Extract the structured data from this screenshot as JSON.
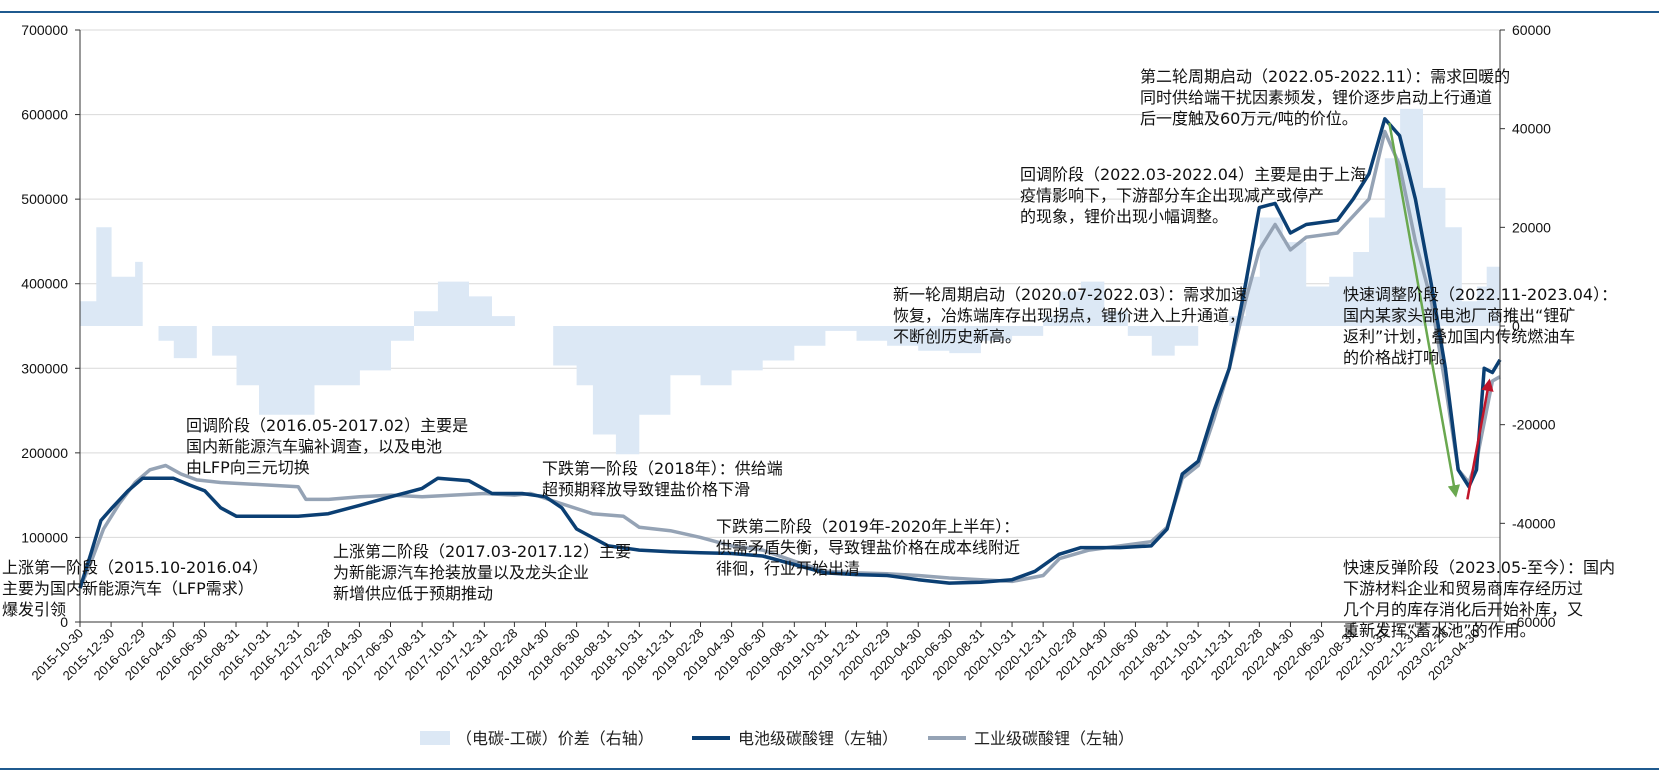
{
  "chart_data": {
    "type": "line",
    "title": "",
    "ylabel_left": "",
    "ylabel_right": "",
    "ylim_left": [
      0,
      700000
    ],
    "ylim_right": [
      -60000,
      60000
    ],
    "yticks_left": [
      "0",
      "100000",
      "200000",
      "300000",
      "400000",
      "500000",
      "600000",
      "700000"
    ],
    "yticks_right": [
      "-60000",
      "-40000",
      "-20000",
      "0",
      "20000",
      "40000",
      "60000"
    ],
    "x_start": "2015-10-30",
    "x_end": "2023-06-15",
    "xticks": [
      "2015-10-30",
      "2015-12-30",
      "2016-02-29",
      "2016-04-30",
      "2016-06-30",
      "2016-08-31",
      "2016-10-31",
      "2016-12-31",
      "2017-02-28",
      "2017-04-30",
      "2017-06-30",
      "2017-08-31",
      "2017-10-31",
      "2017-12-31",
      "2018-02-28",
      "2018-04-30",
      "2018-06-30",
      "2018-08-31",
      "2018-10-31",
      "2018-12-31",
      "2019-02-28",
      "2019-04-30",
      "2019-06-30",
      "2019-08-31",
      "2019-10-31",
      "2019-12-31",
      "2020-02-29",
      "2020-04-30",
      "2020-06-30",
      "2020-08-31",
      "2020-10-31",
      "2020-12-31",
      "2021-02-28",
      "2021-04-30",
      "2021-06-30",
      "2021-08-31",
      "2021-10-31",
      "2021-12-31",
      "2022-02-28",
      "2022-04-30",
      "2022-06-30",
      "2022-08-31",
      "2022-10-31",
      "2022-12-31",
      "2023-02-28",
      "2023-04-30"
    ],
    "series": [
      {
        "name": "（电碳-工碳）价差（右轴）",
        "axis": "right",
        "kind": "area",
        "color": "#dce8f5",
        "points": [
          [
            "2015-10-30",
            5000
          ],
          [
            "2015-12-01",
            20000
          ],
          [
            "2015-12-31",
            10000
          ],
          [
            "2016-02-15",
            13000
          ],
          [
            "2016-03-01",
            0
          ],
          [
            "2016-04-01",
            -3000
          ],
          [
            "2016-05-01",
            -6500
          ],
          [
            "2016-06-15",
            0
          ],
          [
            "2016-07-15",
            -6000
          ],
          [
            "2016-09-01",
            -12000
          ],
          [
            "2016-10-15",
            -18000
          ],
          [
            "2016-12-31",
            -18000
          ],
          [
            "2017-02-01",
            -12000
          ],
          [
            "2017-05-01",
            -9000
          ],
          [
            "2017-07-01",
            -3000
          ],
          [
            "2017-08-15",
            3000
          ],
          [
            "2017-10-01",
            9000
          ],
          [
            "2017-12-01",
            6000
          ],
          [
            "2018-01-15",
            2000
          ],
          [
            "2018-03-01",
            0
          ],
          [
            "2018-04-30",
            0
          ],
          [
            "2018-05-15",
            -8000
          ],
          [
            "2018-06-30",
            -12000
          ],
          [
            "2018-08-01",
            -22000
          ],
          [
            "2018-09-15",
            -26000
          ],
          [
            "2018-10-31",
            -18000
          ],
          [
            "2018-12-31",
            -10000
          ],
          [
            "2019-02-28",
            -12000
          ],
          [
            "2019-04-30",
            -9000
          ],
          [
            "2019-06-30",
            -7000
          ],
          [
            "2019-08-31",
            -4000
          ],
          [
            "2019-10-31",
            -1000
          ],
          [
            "2019-12-31",
            -3000
          ],
          [
            "2020-02-29",
            -4000
          ],
          [
            "2020-04-30",
            -5000
          ],
          [
            "2020-06-30",
            -5500
          ],
          [
            "2020-08-31",
            -3000
          ],
          [
            "2020-10-31",
            -2000
          ],
          [
            "2020-12-31",
            2000
          ],
          [
            "2021-02-01",
            7000
          ],
          [
            "2021-03-15",
            9000
          ],
          [
            "2021-04-30",
            3000
          ],
          [
            "2021-06-15",
            -2000
          ],
          [
            "2021-08-01",
            -6000
          ],
          [
            "2021-09-15",
            -4000
          ],
          [
            "2021-10-31",
            0
          ],
          [
            "2021-12-31",
            2000
          ],
          [
            "2022-02-01",
            10000
          ],
          [
            "2022-03-01",
            22000
          ],
          [
            "2022-04-15",
            17000
          ],
          [
            "2022-05-31",
            8000
          ],
          [
            "2022-07-15",
            10000
          ],
          [
            "2022-08-31",
            15000
          ],
          [
            "2022-10-01",
            22000
          ],
          [
            "2022-11-01",
            34000
          ],
          [
            "2022-12-01",
            44000
          ],
          [
            "2023-01-15",
            28000
          ],
          [
            "2023-02-28",
            20000
          ],
          [
            "2023-04-01",
            5000
          ],
          [
            "2023-05-01",
            8000
          ],
          [
            "2023-05-20",
            12000
          ],
          [
            "2023-06-15",
            10000
          ]
        ]
      },
      {
        "name": "电池级碳酸锂（左轴）",
        "axis": "left",
        "kind": "line",
        "color": "#0b3f73",
        "points": [
          [
            "2015-10-30",
            40000
          ],
          [
            "2015-11-20",
            80000
          ],
          [
            "2015-12-10",
            120000
          ],
          [
            "2016-01-01",
            135000
          ],
          [
            "2016-02-01",
            155000
          ],
          [
            "2016-03-01",
            170000
          ],
          [
            "2016-04-30",
            170000
          ],
          [
            "2016-06-01",
            162000
          ],
          [
            "2016-07-01",
            155000
          ],
          [
            "2016-08-01",
            135000
          ],
          [
            "2016-09-01",
            125000
          ],
          [
            "2016-12-31",
            125000
          ],
          [
            "2017-02-28",
            128000
          ],
          [
            "2017-05-01",
            138000
          ],
          [
            "2017-06-30",
            148000
          ],
          [
            "2017-08-31",
            158000
          ],
          [
            "2017-10-01",
            170000
          ],
          [
            "2017-12-01",
            167000
          ],
          [
            "2018-01-15",
            152000
          ],
          [
            "2018-03-15",
            152000
          ],
          [
            "2018-04-30",
            148000
          ],
          [
            "2018-06-01",
            135000
          ],
          [
            "2018-06-30",
            110000
          ],
          [
            "2018-08-31",
            90000
          ],
          [
            "2018-10-31",
            85000
          ],
          [
            "2018-12-31",
            83000
          ],
          [
            "2019-02-28",
            82000
          ],
          [
            "2019-04-30",
            81000
          ],
          [
            "2019-06-30",
            78000
          ],
          [
            "2019-08-31",
            68000
          ],
          [
            "2019-10-31",
            58000
          ],
          [
            "2019-12-31",
            56000
          ],
          [
            "2020-02-29",
            55000
          ],
          [
            "2020-04-30",
            50000
          ],
          [
            "2020-06-30",
            46000
          ],
          [
            "2020-08-31",
            47000
          ],
          [
            "2020-10-31",
            50000
          ],
          [
            "2020-12-15",
            60000
          ],
          [
            "2021-01-31",
            80000
          ],
          [
            "2021-03-15",
            88000
          ],
          [
            "2021-05-31",
            88000
          ],
          [
            "2021-07-31",
            90000
          ],
          [
            "2021-08-31",
            110000
          ],
          [
            "2021-09-30",
            175000
          ],
          [
            "2021-10-31",
            190000
          ],
          [
            "2021-12-01",
            250000
          ],
          [
            "2021-12-31",
            300000
          ],
          [
            "2022-02-01",
            400000
          ],
          [
            "2022-02-28",
            490000
          ],
          [
            "2022-03-31",
            495000
          ],
          [
            "2022-04-30",
            460000
          ],
          [
            "2022-05-31",
            470000
          ],
          [
            "2022-07-31",
            475000
          ],
          [
            "2022-08-31",
            500000
          ],
          [
            "2022-10-01",
            530000
          ],
          [
            "2022-11-01",
            595000
          ],
          [
            "2022-11-30",
            575000
          ],
          [
            "2022-12-31",
            500000
          ],
          [
            "2023-01-31",
            400000
          ],
          [
            "2023-02-28",
            300000
          ],
          [
            "2023-03-25",
            180000
          ],
          [
            "2023-04-15",
            160000
          ],
          [
            "2023-04-30",
            180000
          ],
          [
            "2023-05-15",
            300000
          ],
          [
            "2023-05-31",
            295000
          ],
          [
            "2023-06-15",
            310000
          ]
        ]
      },
      {
        "name": "工业级碳酸锂（左轴）",
        "axis": "left",
        "kind": "line",
        "color": "#95a3b5",
        "points": [
          [
            "2015-10-30",
            40000
          ],
          [
            "2015-11-20",
            70000
          ],
          [
            "2015-12-15",
            110000
          ],
          [
            "2016-01-15",
            140000
          ],
          [
            "2016-02-15",
            165000
          ],
          [
            "2016-03-15",
            180000
          ],
          [
            "2016-04-15",
            185000
          ],
          [
            "2016-05-15",
            175000
          ],
          [
            "2016-06-15",
            168000
          ],
          [
            "2016-08-01",
            165000
          ],
          [
            "2016-10-31",
            162000
          ],
          [
            "2016-12-31",
            160000
          ],
          [
            "2017-01-15",
            145000
          ],
          [
            "2017-03-01",
            145000
          ],
          [
            "2017-05-01",
            148000
          ],
          [
            "2017-07-01",
            150000
          ],
          [
            "2017-08-31",
            148000
          ],
          [
            "2017-10-31",
            150000
          ],
          [
            "2017-12-31",
            152000
          ],
          [
            "2018-02-28",
            150000
          ],
          [
            "2018-04-01",
            152000
          ],
          [
            "2018-05-31",
            140000
          ],
          [
            "2018-07-31",
            128000
          ],
          [
            "2018-09-30",
            125000
          ],
          [
            "2018-10-31",
            112000
          ],
          [
            "2018-12-31",
            108000
          ],
          [
            "2019-02-28",
            100000
          ],
          [
            "2019-04-30",
            90000
          ],
          [
            "2019-06-30",
            85000
          ],
          [
            "2019-08-31",
            72000
          ],
          [
            "2019-10-31",
            60000
          ],
          [
            "2019-12-31",
            58000
          ],
          [
            "2020-02-29",
            57000
          ],
          [
            "2020-04-30",
            55000
          ],
          [
            "2020-06-30",
            52000
          ],
          [
            "2020-08-31",
            50000
          ],
          [
            "2020-10-31",
            48000
          ],
          [
            "2020-12-31",
            55000
          ],
          [
            "2021-02-01",
            75000
          ],
          [
            "2021-03-31",
            85000
          ],
          [
            "2021-05-31",
            90000
          ],
          [
            "2021-07-31",
            95000
          ],
          [
            "2021-08-31",
            112000
          ],
          [
            "2021-09-30",
            170000
          ],
          [
            "2021-10-31",
            185000
          ],
          [
            "2021-12-01",
            240000
          ],
          [
            "2021-12-31",
            300000
          ],
          [
            "2022-02-01",
            380000
          ],
          [
            "2022-02-28",
            440000
          ],
          [
            "2022-03-31",
            470000
          ],
          [
            "2022-04-30",
            440000
          ],
          [
            "2022-05-31",
            455000
          ],
          [
            "2022-07-31",
            460000
          ],
          [
            "2022-08-31",
            480000
          ],
          [
            "2022-10-01",
            500000
          ],
          [
            "2022-11-01",
            580000
          ],
          [
            "2022-11-30",
            540000
          ],
          [
            "2022-12-31",
            450000
          ],
          [
            "2023-01-31",
            380000
          ],
          [
            "2023-02-28",
            280000
          ],
          [
            "2023-03-25",
            180000
          ],
          [
            "2023-04-15",
            165000
          ],
          [
            "2023-04-30",
            190000
          ],
          [
            "2023-05-31",
            285000
          ],
          [
            "2023-06-15",
            290000
          ]
        ]
      }
    ],
    "arrows": [
      {
        "name": "green-trend-arrow",
        "color": "#6aa84f",
        "from": [
          "2022-11-10",
          590000
        ],
        "to": [
          "2023-03-20",
          150000
        ]
      },
      {
        "name": "red-trend-arrow",
        "color": "#c0152a",
        "from": [
          "2023-04-12",
          145000
        ],
        "to": [
          "2023-05-25",
          285000
        ]
      }
    ],
    "legend": [
      {
        "label": "（电碳-工碳）价差（右轴）",
        "style": "area",
        "color": "#dce8f5"
      },
      {
        "label": "电池级碳酸锂（左轴）",
        "style": "line",
        "color": "#0b3f73"
      },
      {
        "label": "工业级碳酸锂（左轴）",
        "style": "line",
        "color": "#95a3b5"
      }
    ],
    "legend_position": "bottom",
    "annotations": [
      {
        "name": "annotation-rise-phase-1",
        "lines": [
          "上涨第一阶段（2015.10-2016.04）",
          "主要为国内新能源汽车（LFP需求）",
          "爆发引领"
        ]
      },
      {
        "name": "annotation-correction-2016",
        "lines": [
          "回调阶段（2016.05-2017.02）主要是",
          "国内新能源汽车骗补调查，以及电池",
          "由LFP向三元切换"
        ]
      },
      {
        "name": "annotation-rise-phase-2",
        "lines": [
          "上涨第二阶段（2017.03-2017.12）主要",
          "为新能源汽车抢装放量以及龙头企业",
          "新增供应低于预期推动"
        ]
      },
      {
        "name": "annotation-fall-phase-1",
        "lines": [
          "下跌第一阶段（2018年）：供给端",
          "超预期释放导致锂盐价格下滑"
        ]
      },
      {
        "name": "annotation-fall-phase-2",
        "lines": [
          "下跌第二阶段（2019年-2020年上半年）：",
          "供需矛盾失衡，导致锂盐价格在成本线附近",
          "徘徊，行业开始出清"
        ]
      },
      {
        "name": "annotation-new-cycle",
        "lines": [
          "新一轮周期启动（2020.07-2022.03）：需求加速",
          "恢复，冶炼端库存出现拐点，锂价进入上升通道，",
          "不断创历史新高。"
        ]
      },
      {
        "name": "annotation-correction-2022",
        "lines": [
          "回调阶段（2022.03-2022.04）主要是由于上海",
          "疫情影响下，下游部分车企出现减产或停产",
          "的现象，锂价出现小幅调整。"
        ]
      },
      {
        "name": "annotation-second-cycle",
        "lines": [
          "第二轮周期启动（2022.05-2022.11）：需求回暖的",
          "同时供给端干扰因素频发，锂价逐步启动上行通道",
          "后一度触及60万元/吨的价位。"
        ]
      },
      {
        "name": "annotation-fast-adjustment",
        "lines": [
          "快速调整阶段（2022.11-2023.04）：",
          "国内某家头部电池厂商推出“锂矿",
          "返利”计划，叠加国内传统燃油车",
          "的价格战打响。"
        ]
      },
      {
        "name": "annotation-fast-rebound",
        "lines": [
          "快速反弹阶段（2023.05-至今）：国内",
          "下游材料企业和贸易商库存经历过",
          "几个月的库存消化后开始补库，又",
          "重新发挥“蓄水池”的作用。"
        ]
      }
    ]
  }
}
